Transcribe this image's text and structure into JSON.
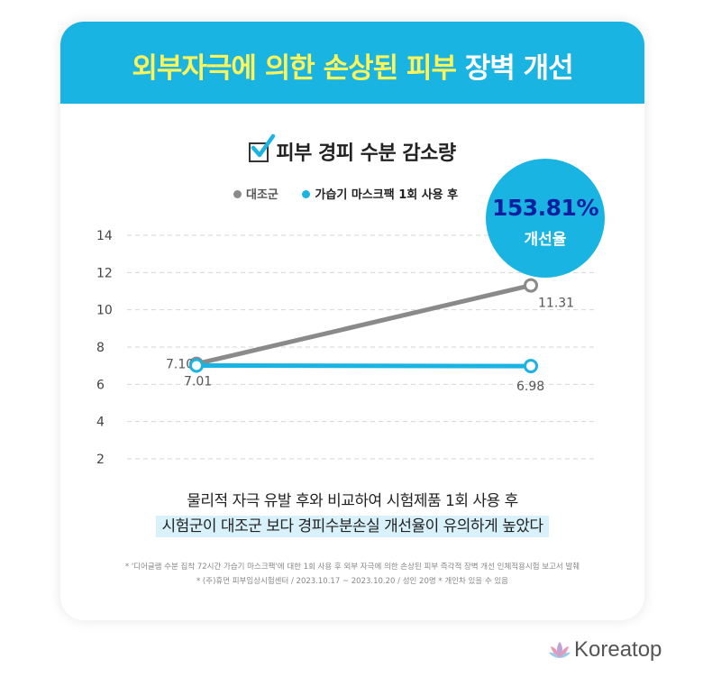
{
  "banner": {
    "title_part1": "외부자극에 의한 손상된 피부",
    "title_part2": "장벽 개선"
  },
  "subtitle": "피부 경피 수분 감소량",
  "badge": {
    "value": "153.81%",
    "label": "개선율"
  },
  "caption": {
    "line1": "물리적 자극 유발 후와 비교하여 시험제품 1회 사용 후",
    "line2": "시험군이 대조군 보다 경피수분손실 개선율이 유의하게 높았다"
  },
  "notes": {
    "line1": "* '디어글램 수분 집착 72시간 가습기 마스크팩'에 대한 1회 사용 후 외부 자극에 의한 손상된 피부 즉각적 장벽 개선 인체적용시험 보고서 발췌",
    "line2": "* (주)휴먼 피부임상시험센터 / 2023.10.17 ~ 2023.10.20 / 성인 20명   * 개인차 있을 수 있음"
  },
  "brand": {
    "name": "Koreatop"
  },
  "colors": {
    "accent": "#1ab4e2",
    "control": "#8a8a8a",
    "highlight": "#fff35a",
    "badge_text": "#0a1fa0"
  },
  "chart_data": {
    "type": "line",
    "x": [
      "",
      ""
    ],
    "ylim": [
      2,
      14
    ],
    "yticks": [
      2,
      4,
      6,
      8,
      10,
      12,
      14
    ],
    "grid": true,
    "legend_position": "top",
    "series": [
      {
        "name": "대조군",
        "values": [
          7.1,
          11.31
        ],
        "labels": [
          "7.10",
          "11.31"
        ],
        "color": "#8a8a8a"
      },
      {
        "name": "가습기 마스크팩 1회 사용 후",
        "values": [
          7.01,
          6.98
        ],
        "labels": [
          "7.01",
          "6.98"
        ],
        "color": "#1ab4e2"
      }
    ]
  }
}
